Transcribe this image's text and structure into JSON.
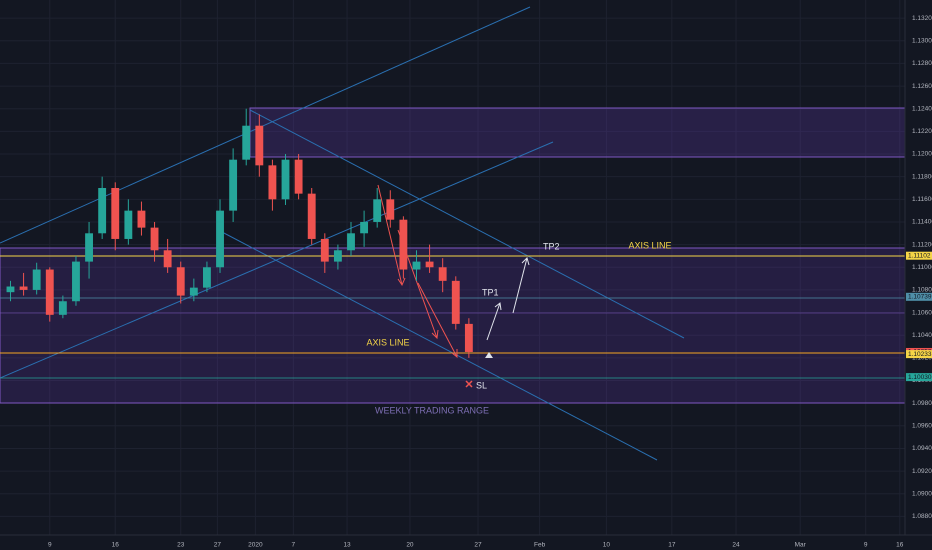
{
  "chart_data": {
    "type": "candlestick",
    "x": [
      -3,
      -2,
      -1,
      0,
      1,
      2,
      3,
      4,
      5,
      6,
      7,
      8,
      9,
      10,
      11,
      12,
      13,
      14,
      15,
      16,
      17,
      18,
      19,
      20,
      21,
      22,
      23,
      24,
      25,
      26,
      27,
      28,
      29,
      30,
      31,
      32
    ],
    "open": [
      1.1078,
      1.1083,
      1.108,
      1.1098,
      1.1058,
      1.107,
      1.1105,
      1.113,
      1.117,
      1.1125,
      1.115,
      1.1135,
      1.1115,
      1.11,
      1.1075,
      1.1082,
      1.11,
      1.115,
      1.1195,
      1.1225,
      1.119,
      1.116,
      1.1195,
      1.1165,
      1.1125,
      1.1105,
      1.1115,
      1.113,
      1.114,
      1.116,
      1.1142,
      1.1098,
      1.1105,
      1.11,
      1.1088,
      1.105
    ],
    "high": [
      1.1088,
      1.1095,
      1.1104,
      1.11,
      1.1075,
      1.111,
      1.114,
      1.118,
      1.1175,
      1.116,
      1.1158,
      1.114,
      1.1125,
      1.1105,
      1.109,
      1.1105,
      1.116,
      1.1205,
      1.124,
      1.1235,
      1.1195,
      1.12,
      1.12,
      1.117,
      1.113,
      1.112,
      1.114,
      1.115,
      1.117,
      1.1168,
      1.1145,
      1.1115,
      1.112,
      1.1108,
      1.1092,
      1.1055
    ],
    "low": [
      1.107,
      1.1075,
      1.1076,
      1.1052,
      1.1055,
      1.1066,
      1.109,
      1.1125,
      1.1115,
      1.112,
      1.1128,
      1.1105,
      1.1095,
      1.1068,
      1.107,
      1.1078,
      1.1095,
      1.114,
      1.119,
      1.118,
      1.115,
      1.1155,
      1.116,
      1.112,
      1.1095,
      1.1098,
      1.111,
      1.1118,
      1.1135,
      1.1135,
      1.109,
      1.1088,
      1.1095,
      1.1078,
      1.1045,
      1.102
    ],
    "close": [
      1.1083,
      1.108,
      1.1098,
      1.1058,
      1.107,
      1.1105,
      1.113,
      1.117,
      1.1125,
      1.115,
      1.1135,
      1.1115,
      1.11,
      1.1075,
      1.1082,
      1.11,
      1.115,
      1.1195,
      1.1225,
      1.119,
      1.116,
      1.1195,
      1.1165,
      1.1125,
      1.1105,
      1.1115,
      1.113,
      1.114,
      1.116,
      1.1142,
      1.1098,
      1.1105,
      1.11,
      1.1088,
      1.105,
      1.10252
    ],
    "up_color": "#26a69a",
    "down_color": "#ef5350",
    "grid": true,
    "ylim": [
      1.0868,
      1.1336
    ],
    "yticks": [
      {
        "value": 1.088,
        "label": "1.08800"
      },
      {
        "value": 1.09,
        "label": "1.09000"
      },
      {
        "value": 1.092,
        "label": "1.09200"
      },
      {
        "value": 1.094,
        "label": "1.09400"
      },
      {
        "value": 1.096,
        "label": "1.09600"
      },
      {
        "value": 1.098,
        "label": "1.09800"
      },
      {
        "value": 1.1,
        "label": "1.10000"
      },
      {
        "value": 1.102,
        "label": "1.10200"
      },
      {
        "value": 1.104,
        "label": "1.10400"
      },
      {
        "value": 1.106,
        "label": "1.10600"
      },
      {
        "value": 1.108,
        "label": "1.10800"
      },
      {
        "value": 1.11,
        "label": "1.11000"
      },
      {
        "value": 1.112,
        "label": "1.11200"
      },
      {
        "value": 1.114,
        "label": "1.11400"
      },
      {
        "value": 1.116,
        "label": "1.11600"
      },
      {
        "value": 1.118,
        "label": "1.11800"
      },
      {
        "value": 1.12,
        "label": "1.12000"
      },
      {
        "value": 1.122,
        "label": "1.12200"
      },
      {
        "value": 1.124,
        "label": "1.12400"
      },
      {
        "value": 1.126,
        "label": "1.12600"
      },
      {
        "value": 1.128,
        "label": "1.12800"
      },
      {
        "value": 1.13,
        "label": "1.13000"
      },
      {
        "value": 1.132,
        "label": "1.13200"
      }
    ],
    "xlim": [
      -3.8,
      65.3
    ],
    "xticks": [
      {
        "value": 0,
        "label": "9"
      },
      {
        "value": 5,
        "label": "16"
      },
      {
        "value": 10,
        "label": "23"
      },
      {
        "value": 12.8,
        "label": "27"
      },
      {
        "value": 15.7,
        "label": "2020"
      },
      {
        "value": 18.6,
        "label": "7"
      },
      {
        "value": 22.7,
        "label": "13"
      },
      {
        "value": 27.5,
        "label": "20"
      },
      {
        "value": 32.7,
        "label": "27"
      },
      {
        "value": 37.4,
        "label": "Feb"
      },
      {
        "value": 42.5,
        "label": "10"
      },
      {
        "value": 47.5,
        "label": "17"
      },
      {
        "value": 52.4,
        "label": "24"
      },
      {
        "value": 57.3,
        "label": "Mar"
      },
      {
        "value": 62.3,
        "label": "9"
      },
      {
        "value": 64.9,
        "label": "16"
      }
    ],
    "price_tags": [
      {
        "value": 1.11102,
        "label": "1.11102",
        "color": "#f5d547"
      },
      {
        "value": 1.10739,
        "label": "1.10739",
        "color": "#4f8fa8"
      },
      {
        "value": 1.10252,
        "label": "1.10252",
        "color": "#ef5350"
      },
      {
        "value": 1.10233,
        "label": "1.10233",
        "color": "#f5d547"
      },
      {
        "value": 1.1003,
        "label": "1.10030",
        "color": "#26a69a"
      }
    ],
    "annotations": [
      "AXIS LINE",
      "AXIS LINE",
      "TP1",
      "TP2",
      "SL",
      "WEEKLY TRADING RANGE"
    ]
  }
}
